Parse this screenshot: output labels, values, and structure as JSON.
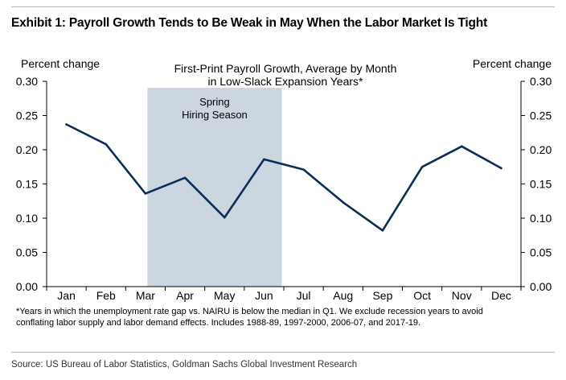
{
  "exhibit_title": "Exhibit 1: Payroll Growth Tends to Be Weak in May When the Labor Market Is Tight",
  "source": "Source: US Bureau of Labor Statistics, Goldman Sachs Global Investment Research",
  "footnote": [
    "*Years in which the unemployment rate gap vs. NAIRU is below the median in Q1. We exclude recession years to avoid",
    "conflating labor supply and labor demand effects. Includes 1988-89, 1997-2000, 2006-07, and 2017-19."
  ],
  "chart_data": {
    "type": "line",
    "title": [
      "First-Print Payroll Growth, Average by Month",
      "in Low-Slack Expansion Years*"
    ],
    "ylabel_left": "Percent change",
    "ylabel_right": "Percent change",
    "categories": [
      "Jan",
      "Feb",
      "Mar",
      "Apr",
      "May",
      "Jun",
      "Jul",
      "Aug",
      "Sep",
      "Oct",
      "Nov",
      "Dec"
    ],
    "series": [
      {
        "name": "First-print payroll growth",
        "values": [
          0.237,
          0.208,
          0.136,
          0.159,
          0.101,
          0.186,
          0.171,
          0.123,
          0.082,
          0.175,
          0.205,
          0.173
        ],
        "color": "#0c2d57"
      }
    ],
    "ylim": [
      0,
      0.3
    ],
    "yticks": [
      "0.00",
      "0.05",
      "0.10",
      "0.15",
      "0.20",
      "0.25",
      "0.30"
    ],
    "shaded_region": {
      "from": "Mar",
      "to": "Jun",
      "label": [
        "Spring",
        "Hiring Season"
      ],
      "color": "#cbd6e1"
    }
  }
}
